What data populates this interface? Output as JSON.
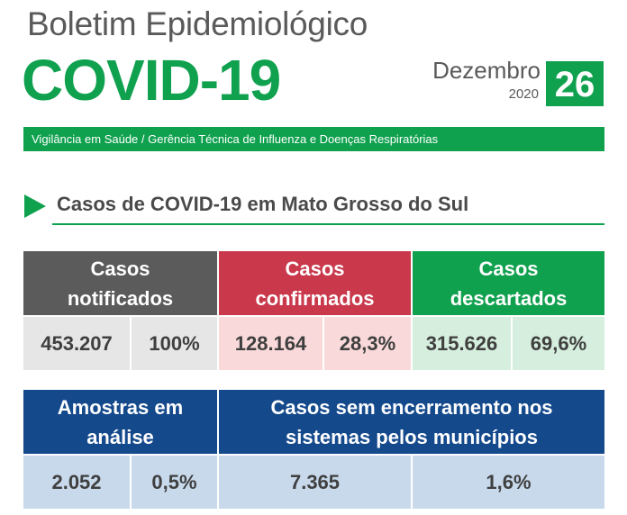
{
  "header": {
    "bulletin": "Boletim Epidemiológico",
    "title": "COVID-19",
    "month": "Dezembro",
    "year": "2020",
    "day": "26",
    "subtitle": "Vigilância em Saúde / Gerência Técnica de Influenza e Doenças Respiratórias"
  },
  "section": {
    "title": "Casos de COVID-19 em Mato Grosso do Sul"
  },
  "table1": {
    "notificados": {
      "line1": "Casos",
      "line2": "notificados",
      "value": "453.207",
      "pct": "100%"
    },
    "confirmados": {
      "line1": "Casos",
      "line2": "confirmados",
      "value": "128.164",
      "pct": "28,3%"
    },
    "descartados": {
      "line1": "Casos",
      "line2": "descartados",
      "value": "315.626",
      "pct": "69,6%"
    }
  },
  "table2": {
    "amostras": {
      "line1": "Amostras em",
      "line2": "análise",
      "value": "2.052",
      "pct": "0,5%"
    },
    "sem_encerramento": {
      "line1": "Casos sem encerramento nos",
      "line2": "sistemas pelos municípios",
      "value": "7.365",
      "pct": "1,6%"
    }
  },
  "colors": {
    "green": "#10a14f",
    "dark_gray": "#5b5b5b",
    "red": "#c9384b",
    "blue": "#14498c",
    "light_gray": "#e6e6e6",
    "light_pink": "#f9d9d9",
    "light_green": "#d5eedd",
    "light_blue": "#c8d9ec"
  }
}
